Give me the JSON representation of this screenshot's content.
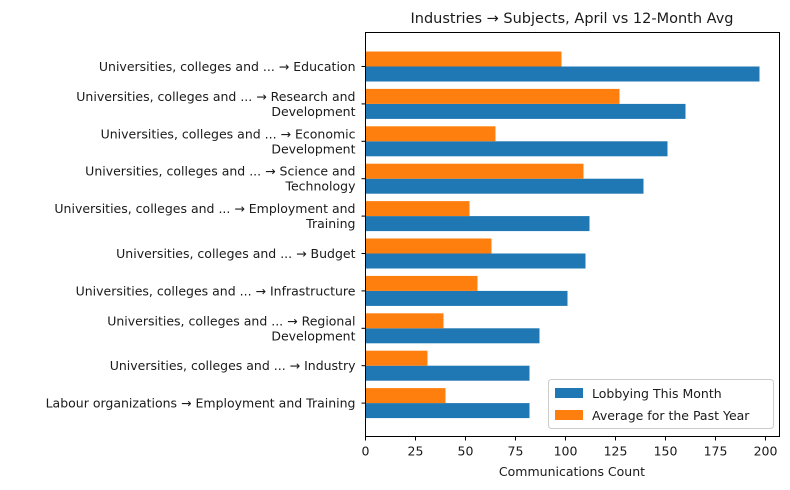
{
  "chart_data": {
    "type": "bar",
    "orientation": "horizontal",
    "title": "Industries → Subjects, April vs 12-Month Avg",
    "xlabel": "Communications Count",
    "ylabel": "",
    "xlim": [
      0,
      207
    ],
    "xticks": [
      0,
      25,
      50,
      75,
      100,
      125,
      150,
      175,
      200
    ],
    "grid": false,
    "legend_position": "lower-right",
    "categories": [
      [
        "Universities, colleges and ... → Education"
      ],
      [
        "Universities, colleges and ... → Research and",
        "Development"
      ],
      [
        "Universities, colleges and ... → Economic",
        "Development"
      ],
      [
        "Universities, colleges and ... → Science and",
        "Technology"
      ],
      [
        "Universities, colleges and ... → Employment and",
        "Training"
      ],
      [
        "Universities, colleges and ... → Budget"
      ],
      [
        "Universities, colleges and ... → Infrastructure"
      ],
      [
        "Universities, colleges and ... → Regional",
        "Development"
      ],
      [
        "Universities, colleges and ... → Industry"
      ],
      [
        "Labour organizations → Employment and Training"
      ]
    ],
    "series": [
      {
        "name": "Lobbying This Month",
        "color": "#1f77b4",
        "values": [
          197,
          160,
          151,
          139,
          112,
          110,
          101,
          87,
          82,
          82
        ]
      },
      {
        "name": "Average for the Past Year",
        "color": "#ff7f0e",
        "values": [
          98,
          127,
          65,
          109,
          52,
          63,
          56,
          39,
          31,
          40
        ]
      }
    ]
  }
}
